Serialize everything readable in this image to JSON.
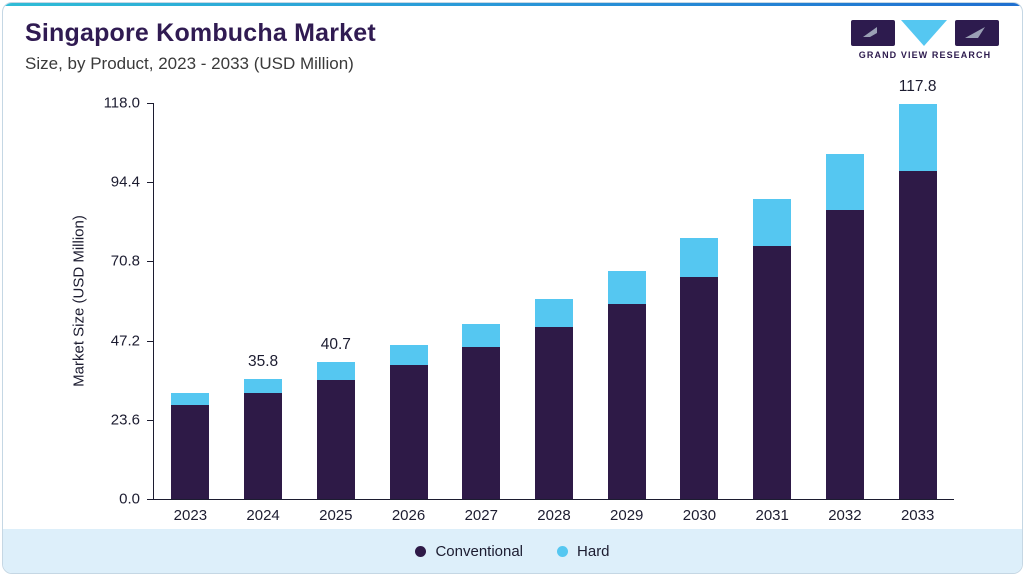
{
  "header": {
    "logo_text": "GRAND VIEW RESEARCH"
  },
  "chart_data": {
    "type": "bar",
    "stacked": true,
    "title": "Singapore Kombucha Market",
    "subtitle": "Size, by Product, 2023 - 2033 (USD Million)",
    "xlabel": "",
    "ylabel": "Market Size (USD Million)",
    "categories": [
      "2023",
      "2024",
      "2025",
      "2026",
      "2027",
      "2028",
      "2029",
      "2030",
      "2031",
      "2032",
      "2033"
    ],
    "series": [
      {
        "name": "Conventional",
        "color": "#2e1a47",
        "values": [
          27.9,
          31.5,
          35.6,
          40.0,
          45.2,
          51.2,
          58.1,
          66.1,
          75.3,
          86.0,
          97.8
        ]
      },
      {
        "name": "Hard",
        "color": "#55c7f1",
        "values": [
          3.7,
          4.3,
          5.1,
          5.9,
          7.0,
          8.3,
          9.9,
          11.8,
          14.1,
          16.7,
          20.0
        ]
      }
    ],
    "totals_labels": [
      "",
      "35.8",
      "40.7",
      "",
      "",
      "",
      "",
      "",
      "",
      "",
      "117.8"
    ],
    "y_ticks": [
      "0.0",
      "23.6",
      "47.2",
      "70.8",
      "94.4",
      "118.0"
    ],
    "ylim": [
      0,
      118
    ],
    "grid": false,
    "legend_position": "bottom"
  },
  "colors": {
    "title": "#301b52",
    "axis": "#1c1c30",
    "legend_background": "#ddeffa",
    "accent_gradient_start": "#2fbcd6",
    "accent_gradient_end": "#1f6fd0"
  }
}
